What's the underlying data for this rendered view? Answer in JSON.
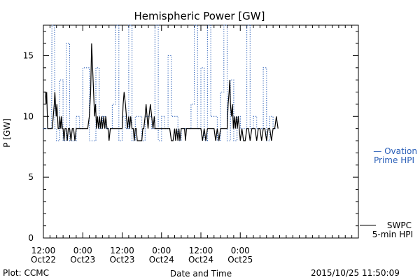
{
  "chart_data": {
    "type": "line",
    "title": "Hemispheric Power [GW]",
    "xlabel": "Date and Time",
    "ylabel": "P [GW]",
    "ylim": [
      0,
      17.5
    ],
    "yticks": [
      0,
      5,
      10,
      15
    ],
    "xlim_hours": [
      0,
      96
    ],
    "xticks": [
      {
        "hour": 0,
        "time": "12:00",
        "date": "Oct22"
      },
      {
        "hour": 12,
        "time": "0:00",
        "date": "Oct23"
      },
      {
        "hour": 24,
        "time": "12:00",
        "date": "Oct23"
      },
      {
        "hour": 36,
        "time": "0:00",
        "date": "Oct24"
      },
      {
        "hour": 48,
        "time": "12:00",
        "date": "Oct24"
      },
      {
        "hour": 60,
        "time": "0:00",
        "date": "Oct25"
      }
    ],
    "grid": false,
    "series": [
      {
        "name": "Ovation Prime HPI",
        "color": "#2a5fb8",
        "style": "dotted-step",
        "points": [
          [
            0,
            9
          ],
          [
            2.5,
            9
          ],
          [
            2.6,
            17.5
          ],
          [
            3.4,
            17.5
          ],
          [
            3.5,
            9
          ],
          [
            4,
            9
          ],
          [
            4,
            8
          ],
          [
            5,
            8
          ],
          [
            5,
            13
          ],
          [
            6,
            13
          ],
          [
            6,
            8
          ],
          [
            7,
            8
          ],
          [
            7,
            16
          ],
          [
            8,
            16
          ],
          [
            8,
            8
          ],
          [
            9,
            8
          ],
          [
            9,
            8
          ],
          [
            10,
            8
          ],
          [
            10,
            10
          ],
          [
            11,
            10
          ],
          [
            11,
            9
          ],
          [
            12,
            9
          ],
          [
            12,
            14
          ],
          [
            14,
            14
          ],
          [
            14,
            8
          ],
          [
            16,
            8
          ],
          [
            16,
            14
          ],
          [
            17,
            14
          ],
          [
            17,
            9
          ],
          [
            18,
            9
          ],
          [
            18,
            10
          ],
          [
            19,
            10
          ],
          [
            19,
            9
          ],
          [
            21,
            9
          ],
          [
            21,
            11
          ],
          [
            22,
            11
          ],
          [
            22,
            17.5
          ],
          [
            23,
            17.5
          ],
          [
            23,
            8
          ],
          [
            24,
            8
          ],
          [
            24,
            10
          ],
          [
            25,
            10
          ],
          [
            25,
            9
          ],
          [
            26,
            9
          ],
          [
            26,
            17.5
          ],
          [
            27,
            17.5
          ],
          [
            27,
            8
          ],
          [
            28,
            8
          ],
          [
            28,
            10
          ],
          [
            30,
            10
          ],
          [
            30,
            8
          ],
          [
            31,
            8
          ],
          [
            31,
            10
          ],
          [
            33,
            10
          ],
          [
            33,
            9
          ],
          [
            34,
            9
          ],
          [
            34,
            17.5
          ],
          [
            35,
            17.5
          ],
          [
            35,
            8
          ],
          [
            36,
            8
          ],
          [
            36,
            10
          ],
          [
            37,
            10
          ],
          [
            37,
            9
          ],
          [
            38,
            9
          ],
          [
            38,
            15
          ],
          [
            39,
            15
          ],
          [
            39,
            10
          ],
          [
            41,
            10
          ],
          [
            41,
            8
          ],
          [
            42,
            8
          ],
          [
            42,
            9
          ],
          [
            45,
            9
          ],
          [
            45,
            11
          ],
          [
            46,
            11
          ],
          [
            46,
            17.5
          ],
          [
            47,
            17.5
          ],
          [
            47,
            9
          ],
          [
            48,
            9
          ],
          [
            48,
            14
          ],
          [
            49,
            14
          ],
          [
            49,
            8
          ],
          [
            50,
            8
          ],
          [
            50,
            17.5
          ],
          [
            51,
            17.5
          ],
          [
            51,
            10
          ],
          [
            53,
            10
          ],
          [
            53,
            8
          ],
          [
            54,
            8
          ],
          [
            54,
            12
          ],
          [
            55,
            12
          ],
          [
            55,
            17.5
          ],
          [
            56,
            17.5
          ],
          [
            56,
            8
          ],
          [
            57,
            8
          ],
          [
            57,
            13
          ],
          [
            58,
            13
          ],
          [
            58,
            8
          ],
          [
            59,
            8
          ],
          [
            59,
            10
          ],
          [
            60,
            10
          ],
          [
            60,
            9
          ],
          [
            62,
            9
          ],
          [
            62,
            17.5
          ],
          [
            63,
            17.5
          ],
          [
            63,
            9
          ],
          [
            64,
            9
          ],
          [
            64,
            10
          ],
          [
            65,
            10
          ],
          [
            65,
            9
          ],
          [
            67,
            9
          ],
          [
            67,
            14
          ],
          [
            68,
            14
          ],
          [
            68,
            8
          ],
          [
            69,
            8
          ],
          [
            69,
            10
          ],
          [
            70,
            10
          ],
          [
            70,
            9
          ],
          [
            71,
            9
          ]
        ]
      },
      {
        "name": "SWPC 5-min HPI",
        "color": "#000000",
        "style": "solid",
        "points": [
          [
            0,
            12
          ],
          [
            0.6,
            12
          ],
          [
            0.8,
            11
          ],
          [
            1,
            12
          ],
          [
            1.3,
            9
          ],
          [
            2.7,
            9
          ],
          [
            3.0,
            10
          ],
          [
            3.3,
            11
          ],
          [
            3.5,
            12
          ],
          [
            3.7,
            11
          ],
          [
            3.9,
            10
          ],
          [
            4.1,
            11
          ],
          [
            4.3,
            10
          ],
          [
            4.5,
            9
          ],
          [
            4.8,
            9
          ],
          [
            5.0,
            10
          ],
          [
            5.3,
            9
          ],
          [
            5.5,
            10
          ],
          [
            5.8,
            9
          ],
          [
            6,
            9
          ],
          [
            6.3,
            8
          ],
          [
            6.6,
            9
          ],
          [
            7,
            9
          ],
          [
            7.3,
            8
          ],
          [
            7.6,
            9
          ],
          [
            8,
            9
          ],
          [
            8.4,
            8
          ],
          [
            8.8,
            9
          ],
          [
            9.2,
            9
          ],
          [
            9.6,
            8
          ],
          [
            10,
            9
          ],
          [
            10.5,
            9
          ],
          [
            11,
            9
          ],
          [
            11.5,
            9
          ],
          [
            12,
            9
          ],
          [
            12.5,
            9
          ],
          [
            13,
            9
          ],
          [
            13.5,
            9
          ],
          [
            14.0,
            10
          ],
          [
            14.4,
            12
          ],
          [
            14.7,
            16
          ],
          [
            15,
            14
          ],
          [
            15.3,
            12
          ],
          [
            15.6,
            10
          ],
          [
            15.9,
            11
          ],
          [
            16.2,
            9
          ],
          [
            16.5,
            10
          ],
          [
            16.8,
            9
          ],
          [
            17.1,
            10
          ],
          [
            17.4,
            9
          ],
          [
            17.7,
            10
          ],
          [
            18,
            9
          ],
          [
            18.4,
            10
          ],
          [
            18.7,
            9
          ],
          [
            19.0,
            10
          ],
          [
            19.4,
            9
          ],
          [
            19.7,
            9
          ],
          [
            20,
            8
          ],
          [
            20.4,
            9
          ],
          [
            20.8,
            9
          ],
          [
            21,
            9
          ],
          [
            21.5,
            9
          ],
          [
            22,
            9
          ],
          [
            22.5,
            9
          ],
          [
            23,
            9
          ],
          [
            23.5,
            9
          ],
          [
            24,
            9
          ],
          [
            24.3,
            11
          ],
          [
            24.6,
            12
          ],
          [
            25.0,
            11
          ],
          [
            25.3,
            10
          ],
          [
            25.6,
            9
          ],
          [
            26,
            10
          ],
          [
            26.3,
            9
          ],
          [
            26.6,
            10
          ],
          [
            27,
            9
          ],
          [
            27.4,
            9
          ],
          [
            27.7,
            8
          ],
          [
            28,
            9
          ],
          [
            28.3,
            9
          ],
          [
            28.6,
            8
          ],
          [
            29,
            8
          ],
          [
            29.5,
            8
          ],
          [
            30,
            8
          ],
          [
            30.3,
            9
          ],
          [
            30.6,
            9
          ],
          [
            31,
            10
          ],
          [
            31.3,
            11
          ],
          [
            31.6,
            10
          ],
          [
            31.9,
            9
          ],
          [
            32.2,
            10
          ],
          [
            32.6,
            11
          ],
          [
            33,
            10
          ],
          [
            33.4,
            9
          ],
          [
            33.8,
            10
          ],
          [
            34,
            9
          ],
          [
            34.5,
            9
          ],
          [
            35,
            9
          ],
          [
            35.5,
            9
          ],
          [
            36,
            9
          ],
          [
            36.5,
            9
          ],
          [
            37,
            9
          ],
          [
            37.5,
            9
          ],
          [
            38,
            9
          ],
          [
            38.5,
            9
          ],
          [
            39,
            8
          ],
          [
            39.5,
            8
          ],
          [
            40,
            9
          ],
          [
            40.3,
            8
          ],
          [
            40.6,
            9
          ],
          [
            41,
            8
          ],
          [
            41.3,
            9
          ],
          [
            41.6,
            8
          ],
          [
            42,
            9
          ],
          [
            42.5,
            9
          ],
          [
            43,
            9
          ],
          [
            43.3,
            8
          ],
          [
            43.6,
            9
          ],
          [
            44,
            9
          ],
          [
            44.5,
            9
          ],
          [
            45,
            9
          ],
          [
            45.5,
            9
          ],
          [
            46,
            9
          ],
          [
            46.5,
            9
          ],
          [
            47,
            9
          ],
          [
            47.5,
            9
          ],
          [
            48,
            9
          ],
          [
            48.5,
            8
          ],
          [
            49,
            9
          ],
          [
            49.5,
            8
          ],
          [
            50,
            9
          ],
          [
            50.5,
            9
          ],
          [
            51,
            9
          ],
          [
            51.5,
            9
          ],
          [
            52,
            9
          ],
          [
            52.5,
            8
          ],
          [
            53,
            9
          ],
          [
            53.5,
            8
          ],
          [
            54,
            9
          ],
          [
            54.5,
            9
          ],
          [
            55,
            9
          ],
          [
            55.5,
            9
          ],
          [
            56,
            9
          ],
          [
            56.3,
            11
          ],
          [
            56.6,
            12
          ],
          [
            56.8,
            13
          ],
          [
            57.0,
            11
          ],
          [
            57.3,
            10
          ],
          [
            57.6,
            11
          ],
          [
            57.9,
            9
          ],
          [
            58.2,
            10
          ],
          [
            58.5,
            9
          ],
          [
            58.8,
            10
          ],
          [
            59.1,
            9
          ],
          [
            59.4,
            10
          ],
          [
            59.7,
            9
          ],
          [
            60,
            8
          ],
          [
            60.5,
            9
          ],
          [
            61,
            8
          ],
          [
            61.5,
            8
          ],
          [
            62,
            9
          ],
          [
            62.5,
            9
          ],
          [
            63,
            8
          ],
          [
            63.5,
            9
          ],
          [
            64,
            9
          ],
          [
            64.5,
            9
          ],
          [
            65,
            8
          ],
          [
            65.5,
            9
          ],
          [
            66,
            9
          ],
          [
            66.5,
            8
          ],
          [
            67,
            9
          ],
          [
            67.5,
            9
          ],
          [
            68,
            8
          ],
          [
            68.5,
            9
          ],
          [
            69,
            9
          ],
          [
            69.5,
            8
          ],
          [
            70,
            9
          ],
          [
            70.5,
            9
          ],
          [
            71,
            10
          ],
          [
            71.5,
            9
          ]
        ]
      }
    ],
    "legend": [
      {
        "symbol": "— ",
        "line1": "Ovation",
        "line2": "Prime HPI",
        "color": "#2a5fb8"
      },
      {
        "symbol": "",
        "line1": "SWPC",
        "line2": "5-min HPI",
        "color": "#000000"
      }
    ]
  },
  "footer": {
    "plot_label": "Plot: CCMC",
    "timestamp": "2015/10/25 11:50:09"
  }
}
